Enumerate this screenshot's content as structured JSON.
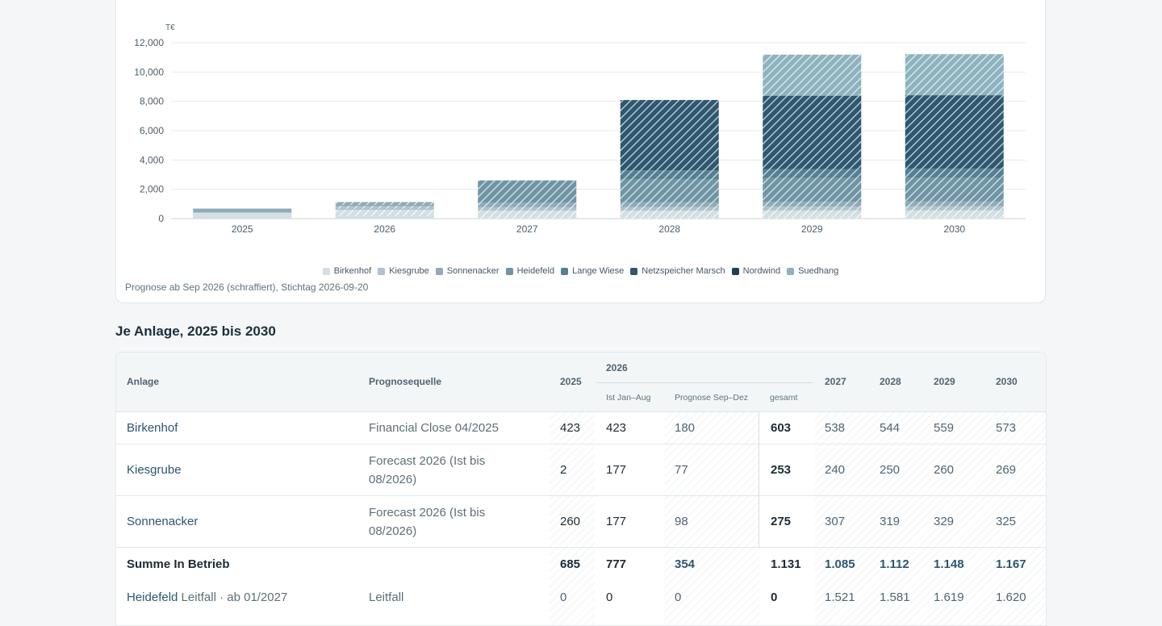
{
  "chart": {
    "unit_label": "T€",
    "note": "Prognose ab Sep 2026 (schraffiert), Stichtag 2026-09-20"
  },
  "chart_data": {
    "type": "bar",
    "stacked": true,
    "categories": [
      "2025",
      "2026",
      "2027",
      "2028",
      "2029",
      "2030"
    ],
    "ylim": [
      0,
      12000
    ],
    "yticks": [
      0,
      2000,
      4000,
      6000,
      8000,
      10000,
      12000
    ],
    "ytick_labels": [
      "0",
      "2,000",
      "4,000",
      "6,000",
      "8,000",
      "10,000",
      "12,000"
    ],
    "ylabel": "T€",
    "grid": true,
    "legend_position": "bottom-center",
    "series": [
      {
        "name": "Birkenhof",
        "color": "#d3dfe2",
        "values": [
          423,
          603,
          538,
          544,
          559,
          573
        ]
      },
      {
        "name": "Kiesgrube",
        "color": "#aec3cb",
        "values": [
          2,
          253,
          240,
          250,
          260,
          269
        ]
      },
      {
        "name": "Sonnenacker",
        "color": "#8fabb7",
        "values": [
          260,
          275,
          307,
          319,
          329,
          325
        ]
      },
      {
        "name": "Heidefeld",
        "color": "#6f95a5",
        "values": [
          0,
          0,
          1521,
          1581,
          1619,
          1620
        ]
      },
      {
        "name": "Lange Wiese",
        "color": "#557f93",
        "values": [
          0,
          0,
          0,
          600,
          620,
          630
        ]
      },
      {
        "name": "Netzspeicher Marsch",
        "color": "#2d5870",
        "values": [
          0,
          0,
          0,
          4800,
          5000,
          5000
        ]
      },
      {
        "name": "Nordwind",
        "color": "#1c4058",
        "values": [
          0,
          0,
          0,
          0,
          0,
          0
        ]
      },
      {
        "name": "Suedhang",
        "color": "#8db3bf",
        "values": [
          0,
          0,
          0,
          0,
          2800,
          2800
        ]
      }
    ],
    "forecast_split": {
      "2025": 0,
      "2026": 0.7,
      "2027": 1,
      "2028": 1,
      "2029": 1,
      "2030": 1
    }
  },
  "section_title": "Je Anlage, 2025 bis 2030",
  "table": {
    "headers": {
      "anlage": "Anlage",
      "quelle": "Prognosequelle",
      "y2025": "2025",
      "y2026": "2026",
      "ist": "Ist Jan–Aug",
      "prognose": "Prognose Sep–Dez",
      "gesamt": "gesamt",
      "y2027": "2027",
      "y2028": "2028",
      "y2029": "2029",
      "y2030": "2030"
    },
    "rows": [
      {
        "name": "Birkenhof",
        "source": "Financial Close 04/2025",
        "y2025": "423",
        "ist": "423",
        "prog": "180",
        "ges": "603",
        "y2027": "538",
        "y2028": "544",
        "y2029": "559",
        "y2030": "573"
      },
      {
        "name": "Kiesgrube",
        "source": "Forecast 2026 (Ist bis 08/2026)",
        "y2025": "2",
        "ist": "177",
        "prog": "77",
        "ges": "253",
        "y2027": "240",
        "y2028": "250",
        "y2029": "260",
        "y2030": "269"
      },
      {
        "name": "Sonnenacker",
        "source": "Forecast 2026 (Ist bis 08/2026)",
        "y2025": "260",
        "ist": "177",
        "prog": "98",
        "ges": "275",
        "y2027": "307",
        "y2028": "319",
        "y2029": "329",
        "y2030": "325"
      }
    ],
    "sum": {
      "label": "Summe In Betrieb",
      "y2025": "685",
      "ist": "777",
      "prog": "354",
      "ges": "1.131",
      "y2027": "1.085",
      "y2028": "1.112",
      "y2029": "1.148",
      "y2030": "1.167"
    },
    "heidefeld": {
      "name": "Heidefeld",
      "suffix": " Leitfall · ab 01/2027",
      "source": "Leitfall",
      "y2025": "0",
      "ist": "0",
      "prog": "0",
      "ges": "0",
      "y2027": "1.521",
      "y2028": "1.581",
      "y2029": "1.619",
      "y2030": "1.620"
    }
  }
}
